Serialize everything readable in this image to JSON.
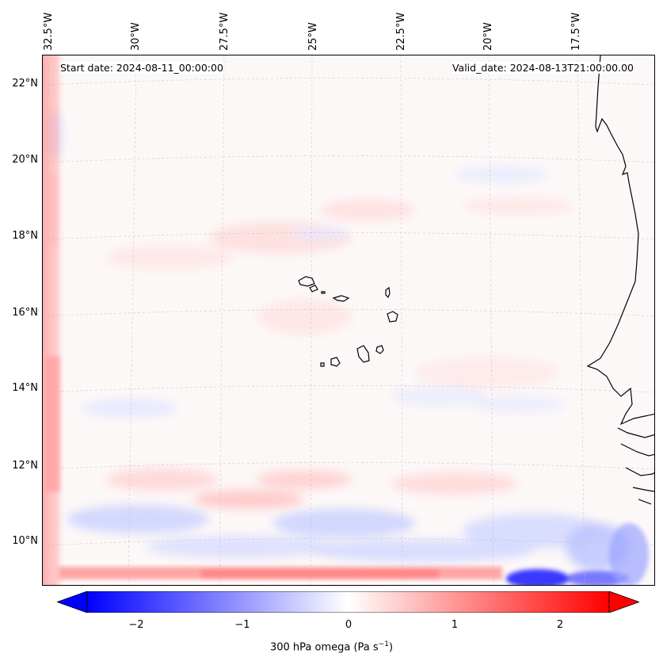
{
  "map": {
    "start_date_label": "Start date: 2024-08-11_00:00:00",
    "valid_date_label": "Valid_date: 2024-08-13T21:00:00.00",
    "longitude_labels": [
      "32.5°W",
      "30°W",
      "27.5°W",
      "25°W",
      "22.5°W",
      "20°W",
      "17.5°W"
    ],
    "latitude_labels": [
      "22°N",
      "20°N",
      "18°N",
      "16°N",
      "14°N",
      "12°N",
      "10°N"
    ],
    "projection": "conic",
    "gridlines": "dashed light gray",
    "features": [
      "Cape Verde islands",
      "West African coastline (Mauritania, Senegal, Gambia, Guinea-Bissau)"
    ]
  },
  "colorbar": {
    "ticks": [
      "−2",
      "−1",
      "0",
      "1",
      "2"
    ],
    "range": [
      -2.5,
      2.5
    ],
    "label": "300 hPa omega (Pa s",
    "label_superscript": "−1",
    "label_suffix": ")",
    "colormap": "bwr",
    "extend": "both",
    "colors": {
      "min": "#0000ff",
      "mid": "#ffffff",
      "max": "#ff0000"
    }
  }
}
